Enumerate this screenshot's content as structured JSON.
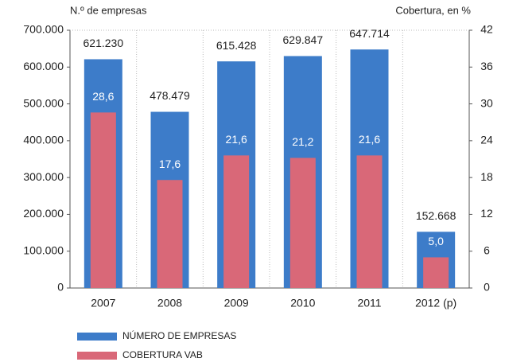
{
  "chart_data": {
    "type": "bar",
    "y_label": "N.º de empresas",
    "y2_label": "Cobertura, en %",
    "categories": [
      "2007",
      "2008",
      "2009",
      "2010",
      "2011",
      "2012 (p)"
    ],
    "series": [
      {
        "name": "NÚMERO DE EMPRESAS",
        "color": "#3d7cc9",
        "values": [
          621230,
          478479,
          615428,
          629847,
          647714,
          152668
        ],
        "value_labels": [
          "621.230",
          "478.479",
          "615.428",
          "629.847",
          "647.714",
          "152.668"
        ]
      },
      {
        "name": "COBERTURA VAB",
        "color": "#d96878",
        "axis": "y2",
        "values": [
          28.6,
          17.6,
          21.6,
          21.2,
          21.6,
          5.0
        ],
        "value_labels": [
          "28,6",
          "17,6",
          "21,6",
          "21,2",
          "21,6",
          "5,0"
        ]
      }
    ],
    "ylim": [
      0,
      700000
    ],
    "yticks": [
      0,
      {
        "value": 100000,
        "label": "100.000"
      },
      {
        "value": 200000,
        "label": "200.000"
      },
      {
        "value": 300000,
        "label": "300.000"
      },
      {
        "value": 400000,
        "label": "400.000"
      },
      {
        "value": 500000,
        "label": "500.000"
      },
      {
        "value": 600000,
        "label": "600.000"
      },
      {
        "value": 700000,
        "label": "700.000"
      }
    ],
    "y2lim": [
      0,
      42
    ],
    "y2ticks": [
      0,
      6,
      12,
      18,
      24,
      30,
      36,
      42
    ],
    "grid": false
  }
}
